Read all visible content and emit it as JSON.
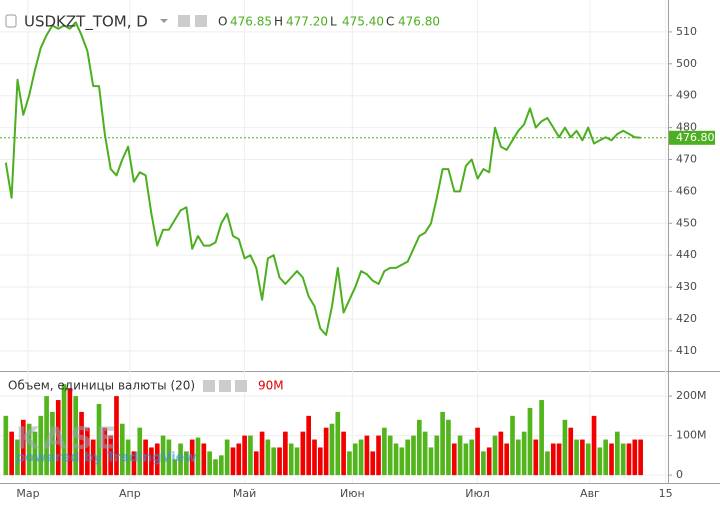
{
  "chart_data": [
    {
      "type": "line",
      "title": "USDKZT_TOM, D",
      "ohlc": [
        {
          "key": "O",
          "value": "476.85"
        },
        {
          "key": "H",
          "value": "477.20"
        },
        {
          "key": "L",
          "value": "475.40"
        },
        {
          "key": "C",
          "value": "476.80"
        }
      ],
      "categories": [
        null,
        null,
        null,
        null,
        null,
        null,
        null,
        null,
        null,
        null,
        null,
        null,
        null,
        null,
        null,
        null,
        null,
        null,
        null,
        null,
        null,
        null,
        null,
        null,
        null,
        null,
        null,
        null,
        null,
        null,
        null,
        null,
        null,
        null,
        null,
        null,
        null,
        null,
        null,
        null,
        null,
        null,
        null,
        null,
        null,
        null,
        null,
        null,
        null,
        null,
        null,
        null,
        null,
        null,
        null,
        null,
        null,
        null,
        null,
        null,
        null,
        null,
        null,
        null,
        null,
        null,
        null,
        null,
        null,
        null,
        null,
        null,
        null,
        null,
        null,
        null,
        null,
        null,
        null,
        null,
        null,
        null,
        null,
        null,
        null,
        null,
        null,
        null,
        null,
        null,
        null,
        null,
        null,
        null,
        null,
        null,
        null,
        null,
        null,
        null,
        null,
        null,
        null,
        null,
        null,
        null,
        null,
        null,
        null,
        null
      ],
      "series": [
        {
          "name": "USDKZT_TOM",
          "color": "#4caf1f",
          "values": [
            469,
            458,
            495,
            484,
            490,
            498,
            505,
            509,
            512,
            511,
            512,
            511,
            513,
            509,
            504,
            493,
            493,
            478,
            467,
            465,
            470,
            474,
            463,
            466,
            465,
            453,
            443,
            448,
            448,
            451,
            454,
            455,
            442,
            446,
            443,
            443,
            444,
            450,
            453,
            446,
            445,
            439,
            440,
            436,
            426,
            439,
            440,
            433,
            431,
            433,
            435,
            433,
            427,
            424,
            417,
            415,
            424,
            436,
            422,
            426,
            430,
            435,
            434,
            432,
            431,
            435,
            436,
            436,
            437,
            438,
            442,
            446,
            447,
            450,
            458,
            467,
            467,
            460,
            460,
            468,
            470,
            464,
            467,
            466,
            480,
            474,
            473,
            476,
            479,
            481,
            486,
            480,
            482,
            483,
            480,
            477,
            480,
            477,
            479,
            476,
            480,
            475,
            476,
            477,
            476,
            478,
            479,
            478,
            477,
            476.8
          ]
        }
      ],
      "last_price": 476.8,
      "last_price_label": "476.80",
      "ylim": [
        404,
        520
      ],
      "yticks": [
        410,
        420,
        430,
        440,
        450,
        460,
        470,
        480,
        490,
        500,
        510
      ],
      "grid": true
    },
    {
      "type": "bar",
      "title": "Объем, единицы валюты (20)",
      "current_label": "90M",
      "watermark": "KASE",
      "credit": "powered by TradingView",
      "up_color": "#52b51c",
      "down_color": "#f20000",
      "values": [
        150000000.0,
        110000000.0,
        90000000.0,
        140000000.0,
        130000000.0,
        110000000.0,
        150000000.0,
        200000000.0,
        160000000.0,
        190000000.0,
        230000000.0,
        220000000.0,
        200000000.0,
        160000000.0,
        120000000.0,
        90000000.0,
        180000000.0,
        120000000.0,
        100000000.0,
        200000000.0,
        130000000.0,
        90000000.0,
        60000000.0,
        120000000.0,
        90000000.0,
        70000000.0,
        80000000.0,
        100000000.0,
        90000000.0,
        40000000.0,
        80000000.0,
        60000000.0,
        90000000.0,
        95000000.0,
        80000000.0,
        60000000.0,
        40000000.0,
        50000000.0,
        90000000.0,
        70000000.0,
        80000000.0,
        100000000.0,
        100000000.0,
        60000000.0,
        110000000.0,
        90000000.0,
        70000000.0,
        70000000.0,
        110000000.0,
        80000000.0,
        70000000.0,
        110000000.0,
        150000000.0,
        90000000.0,
        70000000.0,
        120000000.0,
        130000000.0,
        160000000.0,
        110000000.0,
        60000000.0,
        80000000.0,
        90000000.0,
        100000000.0,
        60000000.0,
        100000000.0,
        120000000.0,
        100000000.0,
        80000000.0,
        70000000.0,
        90000000.0,
        100000000.0,
        140000000.0,
        110000000.0,
        70000000.0,
        100000000.0,
        160000000.0,
        140000000.0,
        80000000.0,
        100000000.0,
        80000000.0,
        90000000.0,
        120000000.0,
        60000000.0,
        70000000.0,
        100000000.0,
        110000000.0,
        80000000.0,
        150000000.0,
        90000000.0,
        110000000.0,
        170000000.0,
        90000000.0,
        190000000.0,
        60000000.0,
        80000000.0,
        80000000.0,
        140000000.0,
        120000000.0,
        90000000.0,
        90000000.0,
        80000000.0,
        150000000.0,
        70000000.0,
        90000000.0,
        80000000.0,
        110000000.0,
        80000000.0,
        80000000.0,
        90000000.0,
        90000000.0
      ],
      "ylim": [
        -20000000.0,
        261000000.0
      ],
      "yticks": [
        0,
        {
          "value": 100000000.0,
          "label": "100M"
        },
        {
          "value": 200000000.0,
          "label": "200M"
        }
      ],
      "xlim": [
        -1,
        113.7
      ],
      "xticks": [
        {
          "value": 3.8,
          "label": "Мар"
        },
        {
          "value": 21.3,
          "label": "Апр"
        },
        {
          "value": 41,
          "label": "Май"
        },
        {
          "value": 59.5,
          "label": "Июн"
        },
        {
          "value": 81,
          "label": "Июл"
        },
        {
          "value": 100.3,
          "label": "Авг"
        },
        {
          "value": 113.3,
          "label": "15"
        }
      ]
    }
  ]
}
